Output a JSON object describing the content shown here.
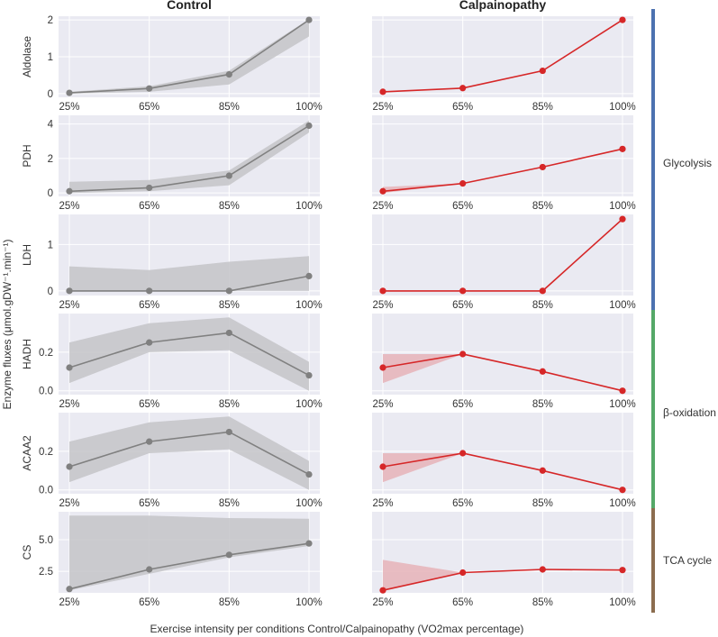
{
  "figure": {
    "control_title": "Control",
    "calp_title": "Calpainopathy",
    "ylabel": "Enzyme fluxes (μmol.gDW⁻¹.min⁻¹)",
    "xlabel": "Exercise intensity per conditions Control/Calpainopathy (VO2max percentage)"
  },
  "colors": {
    "panel_bg": "#eaeaf2",
    "control_line": "#808080",
    "control_band": "#c4c4c8",
    "calp_line": "#d62728",
    "calp_band": "#e6b3b9",
    "glycolysis": "#4c72b0",
    "beta_oxidation": "#55a868",
    "tca": "#8c6d4f"
  },
  "groups": [
    {
      "label": "Glycolysis",
      "rows": [
        0,
        1,
        2
      ]
    },
    {
      "label": "β-oxidation",
      "rows": [
        3,
        4
      ]
    },
    {
      "label": "TCA cycle",
      "rows": [
        5
      ]
    }
  ],
  "chart_data": {
    "type": "line",
    "x": [
      "25%",
      "65%",
      "85%",
      "100%"
    ],
    "panels": [
      {
        "enzyme": "Aldolase",
        "ylim": [
          -0.1,
          2.1
        ],
        "yticks": [
          "0",
          "1",
          "2"
        ],
        "ytick_values": [
          0,
          1,
          2
        ],
        "control": {
          "values": [
            0.02,
            0.14,
            0.52,
            2.0
          ],
          "lower": [
            0.0,
            0.05,
            0.25,
            1.55
          ],
          "upper": [
            0.05,
            0.2,
            0.62,
            2.02
          ]
        },
        "calpainopathy": {
          "values": [
            0.05,
            0.15,
            0.62,
            2.0
          ],
          "lower": [
            0.05,
            0.15,
            0.62,
            2.0
          ],
          "upper": [
            0.05,
            0.15,
            0.62,
            2.0
          ]
        }
      },
      {
        "enzyme": "PDH",
        "ylim": [
          -0.2,
          4.5
        ],
        "yticks": [
          "0",
          "2",
          "4"
        ],
        "ytick_values": [
          0,
          2,
          4
        ],
        "control": {
          "values": [
            0.1,
            0.3,
            1.0,
            3.9
          ],
          "lower": [
            0.0,
            0.1,
            0.45,
            3.5
          ],
          "upper": [
            0.65,
            0.75,
            1.3,
            4.2
          ]
        },
        "calpainopathy": {
          "values": [
            0.1,
            0.55,
            1.5,
            2.55
          ],
          "lower": [
            0.0,
            0.55,
            1.5,
            2.55
          ],
          "upper": [
            0.35,
            0.55,
            1.5,
            2.55
          ]
        }
      },
      {
        "enzyme": "LDH",
        "ylim": [
          -0.1,
          1.65
        ],
        "yticks": [
          "0",
          "1"
        ],
        "ytick_values": [
          0,
          1
        ],
        "control": {
          "values": [
            0.0,
            0.0,
            0.0,
            0.32
          ],
          "lower": [
            0.0,
            0.0,
            0.0,
            0.0
          ],
          "upper": [
            0.53,
            0.45,
            0.63,
            0.75
          ]
        },
        "calpainopathy": {
          "values": [
            0.0,
            0.0,
            0.0,
            1.55
          ],
          "lower": [
            0.0,
            0.0,
            0.0,
            1.55
          ],
          "upper": [
            0.0,
            0.0,
            0.0,
            1.55
          ]
        }
      },
      {
        "enzyme": "HADH",
        "ylim": [
          -0.02,
          0.4
        ],
        "yticks": [
          "0.0",
          "0.2"
        ],
        "ytick_values": [
          0,
          0.2
        ],
        "control": {
          "values": [
            0.12,
            0.25,
            0.3,
            0.08
          ],
          "lower": [
            0.04,
            0.2,
            0.21,
            0.0
          ],
          "upper": [
            0.25,
            0.35,
            0.38,
            0.15
          ]
        },
        "calpainopathy": {
          "values": [
            0.12,
            0.19,
            0.1,
            0.0
          ],
          "lower": [
            0.04,
            0.19,
            0.1,
            0.0
          ],
          "upper": [
            0.19,
            0.19,
            0.1,
            0.0
          ]
        }
      },
      {
        "enzyme": "ACAA2",
        "ylim": [
          -0.02,
          0.4
        ],
        "yticks": [
          "0.0",
          "0.2"
        ],
        "ytick_values": [
          0,
          0.2
        ],
        "control": {
          "values": [
            0.12,
            0.25,
            0.3,
            0.08
          ],
          "lower": [
            0.04,
            0.19,
            0.21,
            0.0
          ],
          "upper": [
            0.25,
            0.35,
            0.38,
            0.15
          ]
        },
        "calpainopathy": {
          "values": [
            0.12,
            0.19,
            0.1,
            0.0
          ],
          "lower": [
            0.04,
            0.19,
            0.1,
            0.0
          ],
          "upper": [
            0.19,
            0.19,
            0.1,
            0.0
          ]
        }
      },
      {
        "enzyme": "CS",
        "ylim": [
          0.8,
          7.2
        ],
        "yticks": [
          "2.5",
          "5.0"
        ],
        "ytick_values": [
          2.5,
          5.0
        ],
        "control": {
          "values": [
            1.1,
            2.65,
            3.8,
            4.7
          ],
          "lower": [
            1.0,
            2.3,
            3.6,
            4.5
          ],
          "upper": [
            6.9,
            6.9,
            6.7,
            6.65
          ]
        },
        "calpainopathy": {
          "values": [
            1.0,
            2.4,
            2.65,
            2.6
          ],
          "lower": [
            1.0,
            2.4,
            2.65,
            2.6
          ],
          "upper": [
            3.4,
            2.4,
            2.65,
            2.6
          ]
        }
      }
    ]
  }
}
